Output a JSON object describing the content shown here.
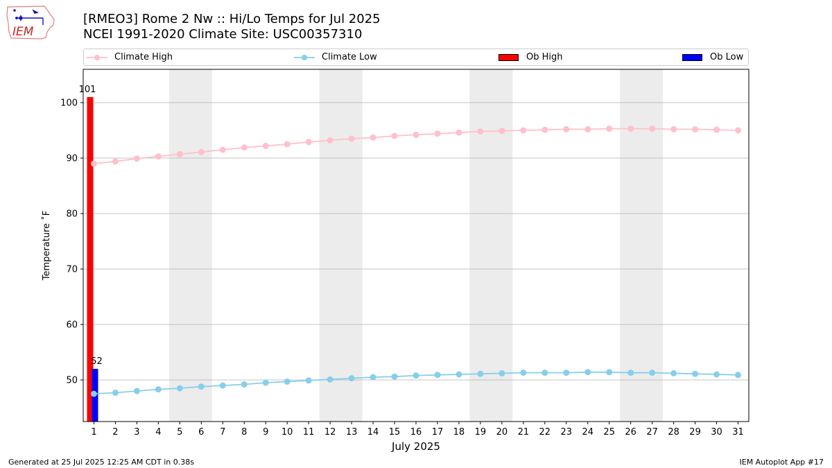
{
  "header": {
    "title_line1": "[RMEO3] Rome 2 Nw :: Hi/Lo Temps for Jul 2025",
    "title_line2": "NCEI 1991-2020 Climate Site: USC00357310"
  },
  "logo": {
    "text": "IEM"
  },
  "footer": {
    "generated": "Generated at 25 Jul 2025 12:25 AM CDT in 0.38s",
    "app": "IEM Autoplot App #17"
  },
  "colors": {
    "climate_high": "#ffc0cb",
    "climate_low": "#87ceeb",
    "ob_high": "#ff0000",
    "ob_low": "#0000ff",
    "weekend_shade": "#ececec",
    "grid": "#b0b0b0"
  },
  "chart_data": {
    "type": "bar",
    "xlabel": "July 2025",
    "ylabel": "Temperature ˚F",
    "xlim": [
      0.5,
      31.5
    ],
    "ylim": [
      42.5,
      106
    ],
    "yticks": [
      50,
      60,
      70,
      80,
      90,
      100
    ],
    "grid": "horizontal",
    "legend_position": "top",
    "weekend_spans": [
      [
        4.5,
        6.5
      ],
      [
        11.5,
        13.5
      ],
      [
        18.5,
        20.5
      ],
      [
        25.5,
        27.5
      ]
    ],
    "days": [
      1,
      2,
      3,
      4,
      5,
      6,
      7,
      8,
      9,
      10,
      11,
      12,
      13,
      14,
      15,
      16,
      17,
      18,
      19,
      20,
      21,
      22,
      23,
      24,
      25,
      26,
      27,
      28,
      29,
      30,
      31
    ],
    "series": [
      {
        "name": "Climate High",
        "kind": "line",
        "values": [
          89.0,
          89.4,
          89.9,
          90.3,
          90.7,
          91.1,
          91.5,
          91.9,
          92.2,
          92.5,
          92.9,
          93.2,
          93.5,
          93.7,
          94.0,
          94.2,
          94.4,
          94.6,
          94.8,
          94.9,
          95.0,
          95.1,
          95.2,
          95.2,
          95.3,
          95.3,
          95.3,
          95.2,
          95.2,
          95.1,
          95.0
        ]
      },
      {
        "name": "Climate Low",
        "kind": "line",
        "values": [
          47.5,
          47.7,
          48.0,
          48.3,
          48.5,
          48.8,
          49.0,
          49.2,
          49.5,
          49.7,
          49.9,
          50.1,
          50.3,
          50.5,
          50.6,
          50.8,
          50.9,
          51.0,
          51.1,
          51.2,
          51.3,
          51.3,
          51.3,
          51.4,
          51.4,
          51.3,
          51.3,
          51.2,
          51.1,
          51.0,
          50.9
        ]
      },
      {
        "name": "Ob High",
        "kind": "bar",
        "days": [
          1
        ],
        "values": [
          101
        ]
      },
      {
        "name": "Ob Low",
        "kind": "bar",
        "days": [
          1
        ],
        "values": [
          52
        ]
      }
    ]
  }
}
